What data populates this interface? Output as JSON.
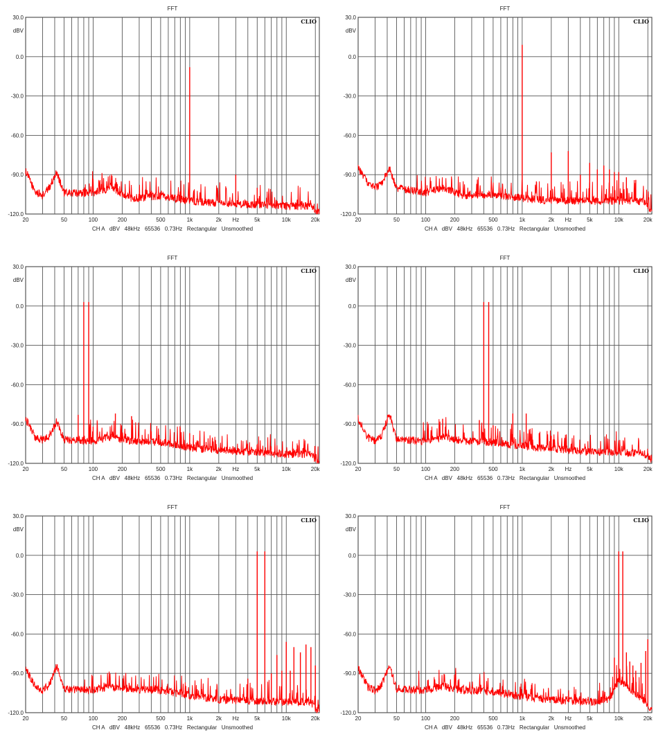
{
  "figure": {
    "panel_count": 6,
    "layout": "3 rows x 2 columns"
  },
  "chart_data": [
    {
      "type": "line",
      "title": "FFT",
      "brand": "CLIO",
      "ylabel": "dBV",
      "xlabel": "Hz",
      "footer": "CH A   dBV   48kHz   65536   0.73Hz   Rectangular   Unsmoothed",
      "x_scale": "log",
      "xlim": [
        20,
        22000
      ],
      "ylim": [
        -120,
        30
      ],
      "grid": true,
      "y_ticks": [
        "30.0",
        "dBV",
        "0.0",
        "-30.0",
        "-60.0",
        "-90.0",
        "-120.0"
      ],
      "x_ticks": [
        "20",
        "50",
        "100",
        "200",
        "500",
        "1k",
        "2k",
        "Hz",
        "5k",
        "10k",
        "20k"
      ],
      "series_color": "#ff0000",
      "noise_floor": [
        [
          20,
          -87
        ],
        [
          25,
          -103
        ],
        [
          30,
          -106
        ],
        [
          35,
          -100
        ],
        [
          42,
          -88
        ],
        [
          50,
          -104
        ],
        [
          100,
          -104
        ],
        [
          150,
          -100
        ],
        [
          250,
          -108
        ],
        [
          500,
          -106
        ],
        [
          1000,
          -110
        ],
        [
          2000,
          -112
        ],
        [
          5000,
          -113
        ],
        [
          10000,
          -114
        ],
        [
          18000,
          -114
        ],
        [
          22000,
          -120
        ]
      ],
      "spikes": [
        [
          1000,
          -8
        ],
        [
          3000,
          -90
        ],
        [
          5000,
          -100
        ]
      ]
    },
    {
      "type": "line",
      "title": "FFT",
      "brand": "CLIO",
      "ylabel": "dBV",
      "xlabel": "Hz",
      "footer": "CH A   dBV   48kHz   65536   0.73Hz   Rectangular   Unsmoothed",
      "x_scale": "log",
      "xlim": [
        20,
        22000
      ],
      "ylim": [
        -120,
        30
      ],
      "grid": true,
      "y_ticks": [
        "30.0",
        "dBV",
        "0.0",
        "-30.0",
        "-60.0",
        "-90.0",
        "-120.0"
      ],
      "x_ticks": [
        "20",
        "50",
        "100",
        "200",
        "500",
        "1k",
        "2k",
        "Hz",
        "5k",
        "10k",
        "20k"
      ],
      "series_color": "#ff0000",
      "noise_floor": [
        [
          20,
          -85
        ],
        [
          25,
          -96
        ],
        [
          30,
          -100
        ],
        [
          35,
          -97
        ],
        [
          42,
          -85
        ],
        [
          50,
          -100
        ],
        [
          100,
          -104
        ],
        [
          150,
          -100
        ],
        [
          250,
          -106
        ],
        [
          500,
          -105
        ],
        [
          1000,
          -108
        ],
        [
          2000,
          -110
        ],
        [
          5000,
          -110
        ],
        [
          10000,
          -110
        ],
        [
          18000,
          -110
        ],
        [
          22000,
          -118
        ]
      ],
      "spikes": [
        [
          1000,
          9
        ],
        [
          2000,
          -73
        ],
        [
          3000,
          -72
        ],
        [
          4000,
          -90
        ],
        [
          5000,
          -81
        ],
        [
          6000,
          -86
        ],
        [
          7000,
          -83
        ],
        [
          8000,
          -86
        ],
        [
          9000,
          -88
        ],
        [
          10000,
          -88
        ],
        [
          12000,
          -92
        ],
        [
          15000,
          -94
        ]
      ]
    },
    {
      "type": "line",
      "title": "FFT",
      "brand": "CLIO",
      "ylabel": "dBV",
      "xlabel": "Hz",
      "footer": "CH A   dBV   48kHz   65536   0.73Hz   Rectangular   Unsmoothed",
      "x_scale": "log",
      "xlim": [
        20,
        22000
      ],
      "ylim": [
        -120,
        30
      ],
      "grid": true,
      "y_ticks": [
        "30.0",
        "dBV",
        "0.0",
        "-30.0",
        "-60.0",
        "-90.0",
        "-120.0"
      ],
      "x_ticks": [
        "20",
        "50",
        "100",
        "200",
        "500",
        "1k",
        "2k",
        "Hz",
        "5k",
        "10k",
        "20k"
      ],
      "series_color": "#ff0000",
      "noise_floor": [
        [
          20,
          -86
        ],
        [
          25,
          -100
        ],
        [
          30,
          -102
        ],
        [
          35,
          -99
        ],
        [
          42,
          -88
        ],
        [
          50,
          -102
        ],
        [
          100,
          -103
        ],
        [
          150,
          -100
        ],
        [
          250,
          -103
        ],
        [
          500,
          -104
        ],
        [
          1000,
          -108
        ],
        [
          2000,
          -110
        ],
        [
          5000,
          -112
        ],
        [
          10000,
          -113
        ],
        [
          18000,
          -113
        ],
        [
          22000,
          -120
        ]
      ],
      "spikes": [
        [
          70,
          -83
        ],
        [
          80,
          3
        ],
        [
          90,
          3
        ],
        [
          100,
          -92
        ],
        [
          170,
          -82
        ],
        [
          250,
          -84
        ],
        [
          1000,
          -97
        ]
      ]
    },
    {
      "type": "line",
      "title": "FFT",
      "brand": "CLIO",
      "ylabel": "dBV",
      "xlabel": "Hz",
      "footer": "CH A   dBV   48kHz   65536   0.73Hz   Rectangular   Unsmoothed",
      "x_scale": "log",
      "xlim": [
        20,
        22000
      ],
      "ylim": [
        -120,
        30
      ],
      "grid": true,
      "y_ticks": [
        "30.0",
        "dBV",
        "0.0",
        "-30.0",
        "-60.0",
        "-90.0",
        "-120.0"
      ],
      "x_ticks": [
        "20",
        "50",
        "100",
        "200",
        "500",
        "1k",
        "2k",
        "Hz",
        "5k",
        "10k",
        "20k"
      ],
      "series_color": "#ff0000",
      "noise_floor": [
        [
          20,
          -86
        ],
        [
          25,
          -100
        ],
        [
          30,
          -103
        ],
        [
          35,
          -99
        ],
        [
          42,
          -82
        ],
        [
          50,
          -102
        ],
        [
          100,
          -103
        ],
        [
          150,
          -100
        ],
        [
          250,
          -103
        ],
        [
          500,
          -104
        ],
        [
          1000,
          -107
        ],
        [
          2000,
          -109
        ],
        [
          5000,
          -111
        ],
        [
          10000,
          -112
        ],
        [
          18000,
          -112
        ],
        [
          22000,
          -118
        ]
      ],
      "spikes": [
        [
          150,
          -86
        ],
        [
          360,
          -87
        ],
        [
          400,
          3
        ],
        [
          450,
          3
        ],
        [
          500,
          -91
        ],
        [
          800,
          -82
        ],
        [
          1100,
          -82
        ],
        [
          1500,
          -97
        ],
        [
          2000,
          -99
        ]
      ]
    },
    {
      "type": "line",
      "title": "FFT",
      "brand": "CLIO",
      "ylabel": "dBV",
      "xlabel": "Hz",
      "footer": "CH A   dBV   48kHz   65536   0.73Hz   Rectangular   Unsmoothed",
      "x_scale": "log",
      "xlim": [
        20,
        22000
      ],
      "ylim": [
        -120,
        30
      ],
      "grid": true,
      "y_ticks": [
        "30.0",
        "dBV",
        "0.0",
        "-30.0",
        "-60.0",
        "-90.0",
        "-120.0"
      ],
      "x_ticks": [
        "20",
        "50",
        "100",
        "200",
        "500",
        "1k",
        "2k",
        "Hz",
        "5k",
        "10k",
        "20k"
      ],
      "series_color": "#ff0000",
      "noise_floor": [
        [
          20,
          -86
        ],
        [
          25,
          -100
        ],
        [
          30,
          -103
        ],
        [
          35,
          -99
        ],
        [
          42,
          -84
        ],
        [
          50,
          -102
        ],
        [
          100,
          -103
        ],
        [
          150,
          -100
        ],
        [
          250,
          -102
        ],
        [
          500,
          -103
        ],
        [
          1000,
          -107
        ],
        [
          2000,
          -110
        ],
        [
          5000,
          -111
        ],
        [
          10000,
          -112
        ],
        [
          18000,
          -112
        ],
        [
          22000,
          -120
        ]
      ],
      "spikes": [
        [
          4000,
          -94
        ],
        [
          5000,
          3
        ],
        [
          6000,
          3
        ],
        [
          7000,
          -90
        ],
        [
          8000,
          -76
        ],
        [
          9000,
          -88
        ],
        [
          10000,
          -66
        ],
        [
          11000,
          -88
        ],
        [
          12000,
          -70
        ],
        [
          14000,
          -74
        ],
        [
          16000,
          -68
        ],
        [
          18000,
          -70
        ],
        [
          20000,
          -84
        ]
      ]
    },
    {
      "type": "line",
      "title": "FFT",
      "brand": "CLIO",
      "ylabel": "dBV",
      "xlabel": "Hz",
      "footer": "CH A   dBV   48kHz   65536   0.73Hz   Rectangular   Unsmoothed",
      "x_scale": "log",
      "xlim": [
        20,
        22000
      ],
      "ylim": [
        -120,
        30
      ],
      "grid": true,
      "y_ticks": [
        "30.0",
        "dBV",
        "0.0",
        "-30.0",
        "-60.0",
        "-90.0",
        "-120.0"
      ],
      "x_ticks": [
        "20",
        "50",
        "100",
        "200",
        "500",
        "1k",
        "2k",
        "Hz",
        "5k",
        "10k",
        "20k"
      ],
      "series_color": "#ff0000",
      "noise_floor": [
        [
          20,
          -86
        ],
        [
          25,
          -100
        ],
        [
          30,
          -103
        ],
        [
          35,
          -99
        ],
        [
          42,
          -84
        ],
        [
          50,
          -102
        ],
        [
          100,
          -103
        ],
        [
          150,
          -100
        ],
        [
          250,
          -103
        ],
        [
          500,
          -104
        ],
        [
          1000,
          -108
        ],
        [
          2000,
          -110
        ],
        [
          5000,
          -112
        ],
        [
          8000,
          -110
        ],
        [
          10000,
          -95
        ],
        [
          12000,
          -100
        ],
        [
          18000,
          -110
        ],
        [
          22000,
          -118
        ]
      ],
      "spikes": [
        [
          9000,
          -78
        ],
        [
          10000,
          3
        ],
        [
          11000,
          3
        ],
        [
          12000,
          -74
        ],
        [
          13000,
          -81
        ],
        [
          14000,
          -84
        ],
        [
          15000,
          -88
        ],
        [
          17000,
          -82
        ],
        [
          19000,
          -73
        ],
        [
          20000,
          -64
        ]
      ]
    }
  ]
}
